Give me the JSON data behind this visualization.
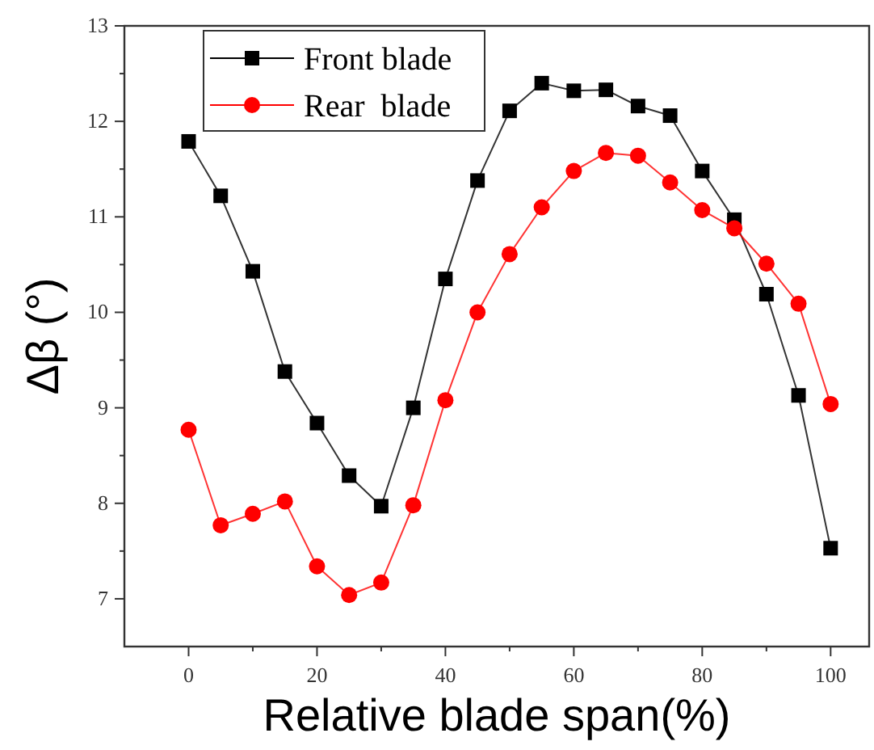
{
  "chart_data": {
    "type": "line",
    "xlabel": "Relative blade span(%)",
    "ylabel": "Δβ (°)",
    "x": [
      0,
      5,
      10,
      15,
      20,
      25,
      30,
      35,
      40,
      45,
      50,
      55,
      60,
      65,
      70,
      75,
      80,
      85,
      90,
      95,
      100
    ],
    "series": [
      {
        "name": "Front blade",
        "color": "#000000",
        "marker": "square",
        "values": [
          11.79,
          11.22,
          10.43,
          9.38,
          8.84,
          8.29,
          7.97,
          9.0,
          10.35,
          11.38,
          12.11,
          12.4,
          12.32,
          12.33,
          12.16,
          12.06,
          11.48,
          10.97,
          10.19,
          9.13,
          7.53
        ]
      },
      {
        "name": "Rear  blade",
        "color": "#ff0000",
        "marker": "circle",
        "values": [
          8.77,
          7.77,
          7.89,
          8.02,
          7.34,
          7.04,
          7.17,
          7.98,
          9.08,
          10.0,
          10.61,
          11.1,
          11.48,
          11.67,
          11.64,
          11.36,
          11.07,
          10.88,
          10.51,
          10.09,
          9.04
        ]
      }
    ],
    "xlim": [
      -10,
      106
    ],
    "xticks": [
      0,
      20,
      40,
      60,
      80,
      100
    ],
    "ylim": [
      6.5,
      13
    ],
    "yticks": [
      7,
      8,
      9,
      10,
      11,
      12,
      13
    ],
    "grid": false,
    "legend": "top left",
    "line_style": "solid"
  }
}
